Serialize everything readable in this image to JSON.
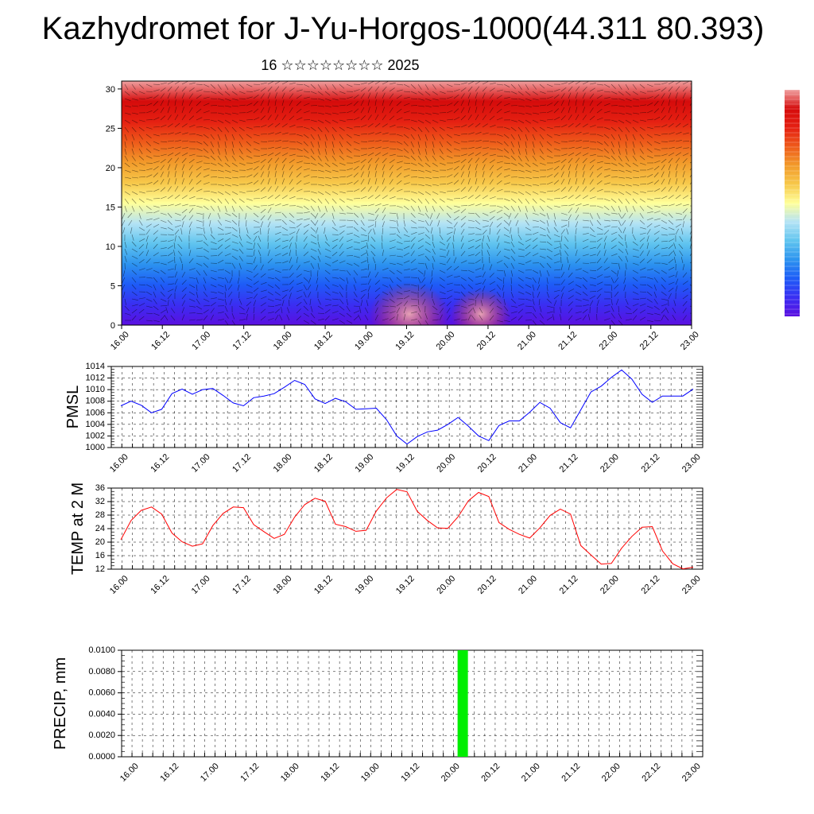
{
  "title": "Kazhydromet for J-Yu-Horgos-1000(44.311 80.393)",
  "subtitle": "16 ☆☆☆☆☆☆☆☆ 2025",
  "colors": {
    "pmsl_line": "#0000ff",
    "temp_line": "#ff0000",
    "precip_bar": "#00ee00",
    "grid": "#000000"
  },
  "colorbar": {
    "colors": [
      "#5b0fe0",
      "#3a2ef2",
      "#1e5cf7",
      "#2c93ef",
      "#5fc4ef",
      "#b4e3f5",
      "#ffff9a",
      "#f7c84a",
      "#f29a2a",
      "#ee5a1a",
      "#e52012",
      "#d50b0b",
      "#f0a0a0"
    ]
  },
  "chart_data": [
    {
      "type": "heatmap",
      "description_key": "cross-section",
      "x_ticks": [
        "16.00",
        "16.12",
        "17.00",
        "17.12",
        "18.00",
        "18.12",
        "19.00",
        "19.12",
        "20.00",
        "20.12",
        "21.00",
        "21.12",
        "22.00",
        "22.12",
        "23.00"
      ],
      "y_ticks": [
        "0",
        "5",
        "10",
        "15",
        "20",
        "25",
        "30"
      ],
      "ylim": [
        0,
        31
      ]
    },
    {
      "type": "line",
      "ylabel": "PMSL",
      "x_ticks": [
        "16.00",
        "16.12",
        "17.00",
        "17.12",
        "18.00",
        "18.12",
        "19.00",
        "19.12",
        "20.00",
        "20.12",
        "21.00",
        "21.12",
        "22.00",
        "22.12",
        "23.00"
      ],
      "y_ticks": [
        "1000",
        "1002",
        "1004",
        "1006",
        "1008",
        "1010",
        "1012",
        "1014"
      ],
      "ylim": [
        1000,
        1014
      ],
      "series": [
        {
          "values": [
            1007.2,
            1008,
            1007.3,
            1006,
            1006.6,
            1009.3,
            1010.1,
            1009.2,
            1010,
            1010.2,
            1009,
            1007.7,
            1007.2,
            1008.6,
            1008.9,
            1009.3,
            1010.4,
            1011.6,
            1010.9,
            1008.4,
            1007.6,
            1008.5,
            1007.9,
            1006.6,
            1006.7,
            1006.8,
            1004.8,
            1002,
            1000.6,
            1001.9,
            1002.7,
            1003,
            1004,
            1005.2,
            1003.7,
            1002,
            1001.2,
            1003.8,
            1004.6,
            1004.6,
            1006.1,
            1007.8,
            1006.8,
            1004.3,
            1003.4,
            1006.5,
            1009.6,
            1010.6,
            1012.1,
            1013.4,
            1011.8,
            1009.2,
            1007.8,
            1008.9,
            1008.9,
            1008.9,
            1010.1
          ]
        }
      ]
    },
    {
      "type": "line",
      "ylabel": "TEMP at 2 M",
      "x_ticks": [
        "16.00",
        "16.12",
        "17.00",
        "17.12",
        "18.00",
        "18.12",
        "19.00",
        "19.12",
        "20.00",
        "20.12",
        "21.00",
        "21.12",
        "22.00",
        "22.12",
        "23.00"
      ],
      "y_ticks": [
        "12",
        "16",
        "20",
        "24",
        "28",
        "32",
        "36"
      ],
      "ylim": [
        12,
        36
      ],
      "series": [
        {
          "values": [
            20.7,
            26.4,
            29.4,
            30.4,
            28.3,
            22.7,
            20.1,
            18.8,
            19.5,
            24.9,
            28.5,
            30.4,
            30.2,
            25.2,
            23.1,
            21.1,
            22.3,
            27.4,
            31.1,
            33,
            32.1,
            25.3,
            24.6,
            23.2,
            23.5,
            29.2,
            33.1,
            35.6,
            34.9,
            29.1,
            26.4,
            24.2,
            24.1,
            27.5,
            32.2,
            34.7,
            33.5,
            25.8,
            23.8,
            22.3,
            21.2,
            24.2,
            27.9,
            29.8,
            28.3,
            19,
            16.2,
            13.5,
            13.7,
            18.2,
            21.7,
            24.4,
            24.6,
            17.4,
            13.6,
            12.1,
            12.6
          ]
        }
      ]
    },
    {
      "type": "bar",
      "ylabel": "PRECIP, mm",
      "x_ticks": [
        "16.00",
        "16.12",
        "17.00",
        "17.12",
        "18.00",
        "18.12",
        "19.00",
        "19.12",
        "20.00",
        "20.12",
        "21.00",
        "21.12",
        "22.00",
        "22.12",
        "23.00"
      ],
      "y_ticks": [
        "0.0000",
        "0.0020",
        "0.0040",
        "0.0060",
        "0.0080",
        "0.0100"
      ],
      "ylim": [
        0,
        0.01
      ],
      "bars": [
        {
          "x_step": 33,
          "value": 0.01
        }
      ]
    }
  ]
}
